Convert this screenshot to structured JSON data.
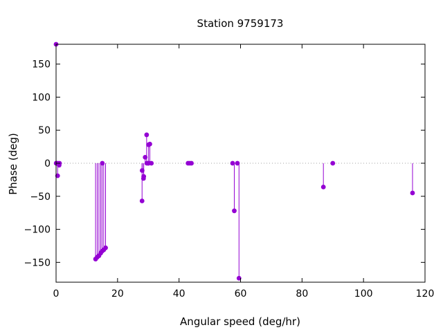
{
  "chart_data": {
    "type": "scatter",
    "style": "impulses-with-points",
    "title": "Station 9759173",
    "xlabel": "Angular speed (deg/hr)",
    "ylabel": "Phase (deg)",
    "xlim": [
      0,
      120
    ],
    "ylim": [
      -180,
      180
    ],
    "xticks": [
      0,
      20,
      40,
      60,
      80,
      100,
      120
    ],
    "yticks": [
      -150,
      -100,
      -50,
      0,
      50,
      100,
      150
    ],
    "grid": false,
    "zero_line": true,
    "colors": {
      "series": "#9400d3",
      "axis": "#000000",
      "zero_line": "#a0a0a0"
    },
    "series": [
      {
        "points": [
          [
            0.0,
            180
          ],
          [
            0.04,
            0
          ],
          [
            0.08,
            0
          ],
          [
            0.5,
            -19
          ],
          [
            0.55,
            0
          ],
          [
            1.0,
            -3
          ],
          [
            1.1,
            0
          ],
          [
            12.85,
            -145
          ],
          [
            13.4,
            -142
          ],
          [
            13.94,
            -140
          ],
          [
            14.5,
            -136
          ],
          [
            14.96,
            -133
          ],
          [
            15.04,
            0
          ],
          [
            15.5,
            -131
          ],
          [
            16.1,
            -128
          ],
          [
            27.97,
            -57
          ],
          [
            28.0,
            -11
          ],
          [
            28.44,
            -23
          ],
          [
            28.51,
            -20
          ],
          [
            28.98,
            9
          ],
          [
            29.46,
            43
          ],
          [
            29.53,
            0
          ],
          [
            30.0,
            0
          ],
          [
            30.08,
            28
          ],
          [
            30.04,
            0
          ],
          [
            30.5,
            29
          ],
          [
            31.0,
            0
          ],
          [
            42.93,
            0
          ],
          [
            43.48,
            0
          ],
          [
            44.03,
            0
          ],
          [
            57.42,
            0
          ],
          [
            57.97,
            -72
          ],
          [
            58.98,
            0
          ],
          [
            59.5,
            -174
          ],
          [
            86.95,
            -36
          ],
          [
            90.0,
            0
          ],
          [
            115.94,
            -45
          ]
        ]
      }
    ]
  }
}
